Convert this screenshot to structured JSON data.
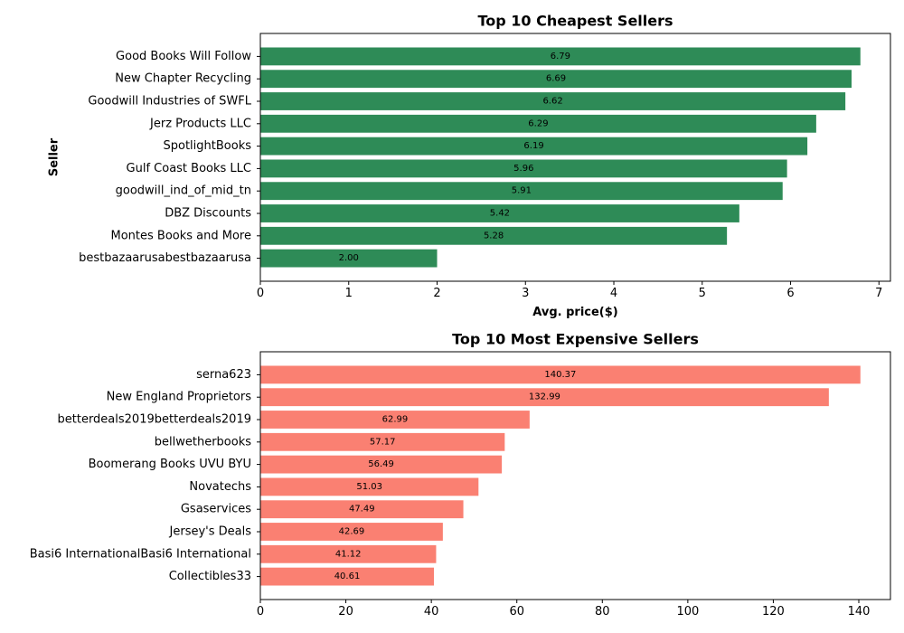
{
  "chart_data": [
    {
      "type": "bar",
      "orientation": "horizontal",
      "title": "Top 10 Cheapest Sellers",
      "xlabel": "Avg. price($)",
      "ylabel": "Seller",
      "xlim": [
        0,
        7.13
      ],
      "xticks": [
        0,
        1,
        2,
        3,
        4,
        5,
        6,
        7
      ],
      "color": "#2e8b57",
      "categories": [
        "Good Books Will Follow",
        "New Chapter Recycling",
        "Goodwill Industries of SWFL",
        "Jerz Products LLC",
        "SpotlightBooks",
        "Gulf Coast Books LLC",
        "goodwill_ind_of_mid_tn",
        "DBZ Discounts",
        "Montes Books and More",
        "bestbazaarusabestbazaarusa"
      ],
      "values": [
        6.79,
        6.69,
        6.62,
        6.29,
        6.19,
        5.96,
        5.91,
        5.42,
        5.28,
        2.0
      ],
      "value_labels": [
        "6.79",
        "6.69",
        "6.62",
        "6.29",
        "6.19",
        "5.96",
        "5.91",
        "5.42",
        "5.28",
        "2.00"
      ],
      "grid": false,
      "legend": "none"
    },
    {
      "type": "bar",
      "orientation": "horizontal",
      "title": "Top 10 Most Expensive Sellers",
      "xlabel": "",
      "ylabel": "",
      "xlim": [
        0,
        147.4
      ],
      "xticks": [
        0,
        20,
        40,
        60,
        80,
        100,
        120,
        140
      ],
      "color": "#fa8072",
      "categories": [
        "serna623",
        "New England Proprietors",
        "betterdeals2019betterdeals2019",
        "bellwetherbooks",
        "Boomerang Books UVU BYU",
        "Novatechs",
        "Gsaservices",
        "Jersey's Deals",
        "Basi6 InternationalBasi6 International",
        "Collectibles33"
      ],
      "values": [
        140.37,
        132.99,
        62.99,
        57.17,
        56.49,
        51.03,
        47.49,
        42.69,
        41.12,
        40.61
      ],
      "value_labels": [
        "140.37",
        "132.99",
        "62.99",
        "57.17",
        "56.49",
        "51.03",
        "47.49",
        "42.69",
        "41.12",
        "40.61"
      ],
      "grid": false,
      "legend": "none"
    }
  ]
}
